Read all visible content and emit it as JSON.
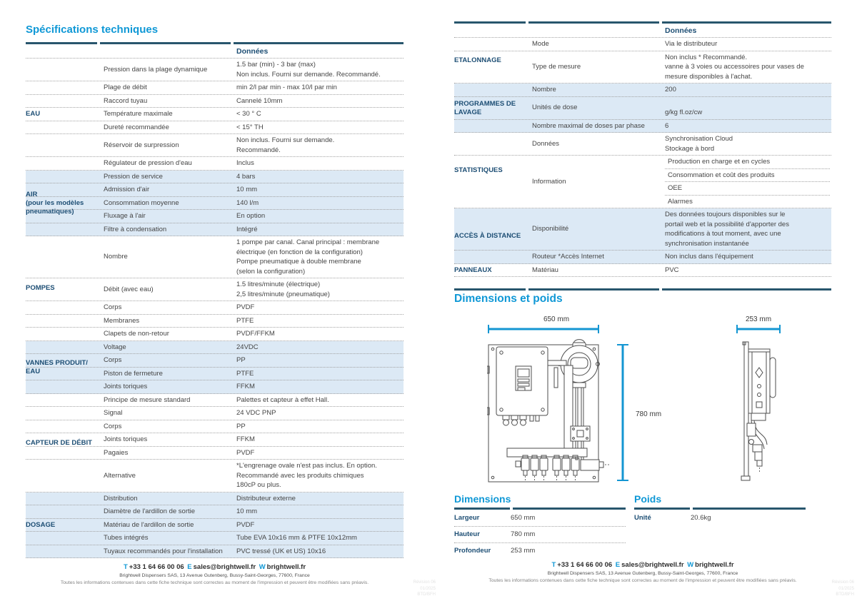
{
  "page_left": {
    "title": "Spécifications techniques",
    "table": {
      "header": "Données",
      "sections": [
        {
          "label_lines": [
            "EAU"
          ],
          "shaded": false,
          "rows": [
            {
              "attr": "Pression dans la plage dynamique",
              "values": [
                "1.5 bar (min) - 3 bar (max)",
                "Non inclus. Fourni sur demande. Recommandé."
              ]
            },
            {
              "attr": "Plage de débit",
              "values": [
                "min 2/l par min - max 10/l par min"
              ]
            },
            {
              "attr": "Raccord tuyau",
              "values": [
                "Cannelé 10mm"
              ]
            },
            {
              "attr": "Température maximale",
              "values": [
                "< 30 ° C"
              ]
            },
            {
              "attr": "Dureté recommandée",
              "values": [
                "< 15° TH"
              ]
            },
            {
              "attr": "Réservoir de surpression",
              "values": [
                "Non inclus. Fourni sur demande.",
                "Recommandé."
              ]
            },
            {
              "attr": "Régulateur de pression d'eau",
              "values": [
                "Inclus"
              ]
            }
          ]
        },
        {
          "label_lines": [
            "AIR",
            "(pour les modèles",
            "pneumatiques)"
          ],
          "shaded": true,
          "rows": [
            {
              "attr": "Pression de service",
              "values": [
                "4 bars"
              ]
            },
            {
              "attr": "Admission d'air",
              "values": [
                "10 mm"
              ]
            },
            {
              "attr": "Consommation moyenne",
              "values": [
                "140 l/m"
              ]
            },
            {
              "attr": "Fluxage à l'air",
              "values": [
                "En option"
              ]
            },
            {
              "attr": "Filtre à condensation",
              "values": [
                "Intégré"
              ]
            }
          ]
        },
        {
          "label_lines": [
            "POMPES"
          ],
          "shaded": false,
          "rows": [
            {
              "attr": "Nombre",
              "values": [
                "1 pompe par canal. Canal principal : membrane",
                "électrique (en fonction de la configuration)",
                "Pompe pneumatique à double membrane",
                "(selon la configuration)"
              ]
            },
            {
              "attr": "Débit (avec eau)",
              "values": [
                "1.5 litres/minute (électrique)",
                "2,5 litres/minute (pneumatique)"
              ]
            },
            {
              "attr": "Corps",
              "values": [
                "PVDF"
              ]
            },
            {
              "attr": "Membranes",
              "values": [
                "PTFE"
              ]
            },
            {
              "attr": "Clapets de non-retour",
              "values": [
                "PVDF/FFKM"
              ]
            }
          ]
        },
        {
          "label_lines": [
            "VANNES PRODUIT/",
            "EAU"
          ],
          "shaded": true,
          "rows": [
            {
              "attr": "Voltage",
              "values": [
                "24VDC"
              ]
            },
            {
              "attr": "Corps",
              "values": [
                "PP"
              ]
            },
            {
              "attr": "Piston de fermeture",
              "values": [
                "PTFE"
              ]
            },
            {
              "attr": "Joints toriques",
              "values": [
                "FFKM"
              ]
            }
          ]
        },
        {
          "label_lines": [
            "CAPTEUR DE DÉBIT"
          ],
          "shaded": false,
          "rows": [
            {
              "attr": "Principe de mesure standard",
              "values": [
                "Palettes et capteur à effet Hall."
              ]
            },
            {
              "attr": "Signal",
              "values": [
                "24 VDC PNP"
              ]
            },
            {
              "attr": "Corps",
              "values": [
                "PP"
              ]
            },
            {
              "attr": "Joints toriques",
              "values": [
                "FFKM"
              ]
            },
            {
              "attr": "Pagaies",
              "values": [
                "PVDF"
              ]
            },
            {
              "attr": "Alternative",
              "values": [
                "*L'engrenage ovale n'est pas inclus. En option.",
                "Recommandé avec les produits chimiques",
                "180cP ou plus."
              ]
            }
          ]
        },
        {
          "label_lines": [
            "DOSAGE"
          ],
          "shaded": true,
          "rows": [
            {
              "attr": "Distribution",
              "values": [
                "Distributeur externe"
              ]
            },
            {
              "attr": "Diamètre de l'ardillon de sortie",
              "values": [
                "10 mm"
              ]
            },
            {
              "attr": "Matériau de l'ardillon de sortie",
              "values": [
                "PVDF"
              ]
            },
            {
              "attr": "Tubes intégrés",
              "values": [
                "Tube EVA 10x16 mm & PTFE 10x12mm"
              ]
            },
            {
              "attr": "Tuyaux recommandés pour l'installation",
              "values": [
                "PVC tressé (UK et US) 10x16"
              ]
            }
          ]
        }
      ]
    }
  },
  "page_right": {
    "table": {
      "header": "Données",
      "sections": [
        {
          "label_lines": [
            "ETALONNAGE"
          ],
          "shaded": false,
          "rows": [
            {
              "attr": "Mode",
              "values": [
                "Via le distributeur"
              ]
            },
            {
              "attr": "Type de mesure",
              "values": [
                "Non inclus * Recommandé.",
                "vanne à 3 voies ou accessoires pour vases de",
                "mesure disponibles à l'achat."
              ]
            }
          ]
        },
        {
          "label_lines": [
            "PROGRAMMES DE",
            "LAVAGE"
          ],
          "shaded": true,
          "rows": [
            {
              "attr": "Nombre",
              "values": [
                "200"
              ]
            },
            {
              "attr": "Unités de dose",
              "values": [
                "",
                "g/kg fl.oz/cw"
              ]
            },
            {
              "attr": "Nombre maximal de doses par phase",
              "values": [
                "6"
              ]
            }
          ]
        },
        {
          "label_lines": [
            "STATISTIQUES"
          ],
          "shaded": false,
          "rows": [
            {
              "attr": "Données",
              "values": [
                "Synchronisation Cloud",
                "Stockage à bord"
              ]
            },
            {
              "attr": "Information",
              "sub_values": [
                "Production en charge et en cycles",
                "Consommation et coût des produits",
                "OEE",
                "Alarmes"
              ]
            }
          ]
        },
        {
          "label_lines": [
            "ACCÈS À DISTANCE"
          ],
          "shaded": true,
          "rows": [
            {
              "attr": "Disponibilité",
              "values": [
                "Des données toujours disponibles sur le",
                "portail web et la possibilité d'apporter des",
                "modifications à tout moment, avec une",
                "synchronisation instantanée"
              ]
            },
            {
              "attr": "Routeur *Accès Internet",
              "values": [
                "Non inclus dans l'équipement"
              ]
            }
          ]
        },
        {
          "label_lines": [
            "PANNEAUX"
          ],
          "shaded": false,
          "rows": [
            {
              "attr": "Matériau",
              "values": [
                "PVC"
              ]
            }
          ]
        }
      ]
    },
    "dimensions_section": {
      "title": "Dimensions et poids",
      "front_view": {
        "width_label": "650 mm",
        "height_label": "780 mm"
      },
      "side_view": {
        "depth_label": "253 mm"
      },
      "dimensions_table": {
        "title": "Dimensions",
        "rows": [
          {
            "label": "Largeur",
            "value": "650 mm"
          },
          {
            "label": "Hauteur",
            "value": "780 mm"
          },
          {
            "label": "Profondeur",
            "value": "253 mm"
          }
        ]
      },
      "weight_table": {
        "title": "Poids",
        "rows": [
          {
            "label": "Unité",
            "value": "20.6kg"
          }
        ]
      }
    }
  },
  "footer": {
    "phone_label": "T",
    "phone": "+33 1 64 66 00 06",
    "email_label": "E",
    "email": "sales@brightwell.fr",
    "web_label": "W",
    "web": "brightwell.fr",
    "address": "Brightwell Dispensers SAS, 13 Avenue Gutenberg, Bussy-Saint-Georges, 77600, France",
    "disclaimer": "Toutes les informations contenues dans cette fiche technique sont correctes au moment de l'impression et peuvent être modifiées sans préavis.",
    "revision_lines": [
      "Révision 06",
      "01/2025",
      "BTD/BFH"
    ]
  },
  "colors": {
    "accent_cyan": "#0f98d6",
    "navy": "#1d4e74",
    "rule": "#28566d",
    "shaded_row": "#dce9f5"
  }
}
